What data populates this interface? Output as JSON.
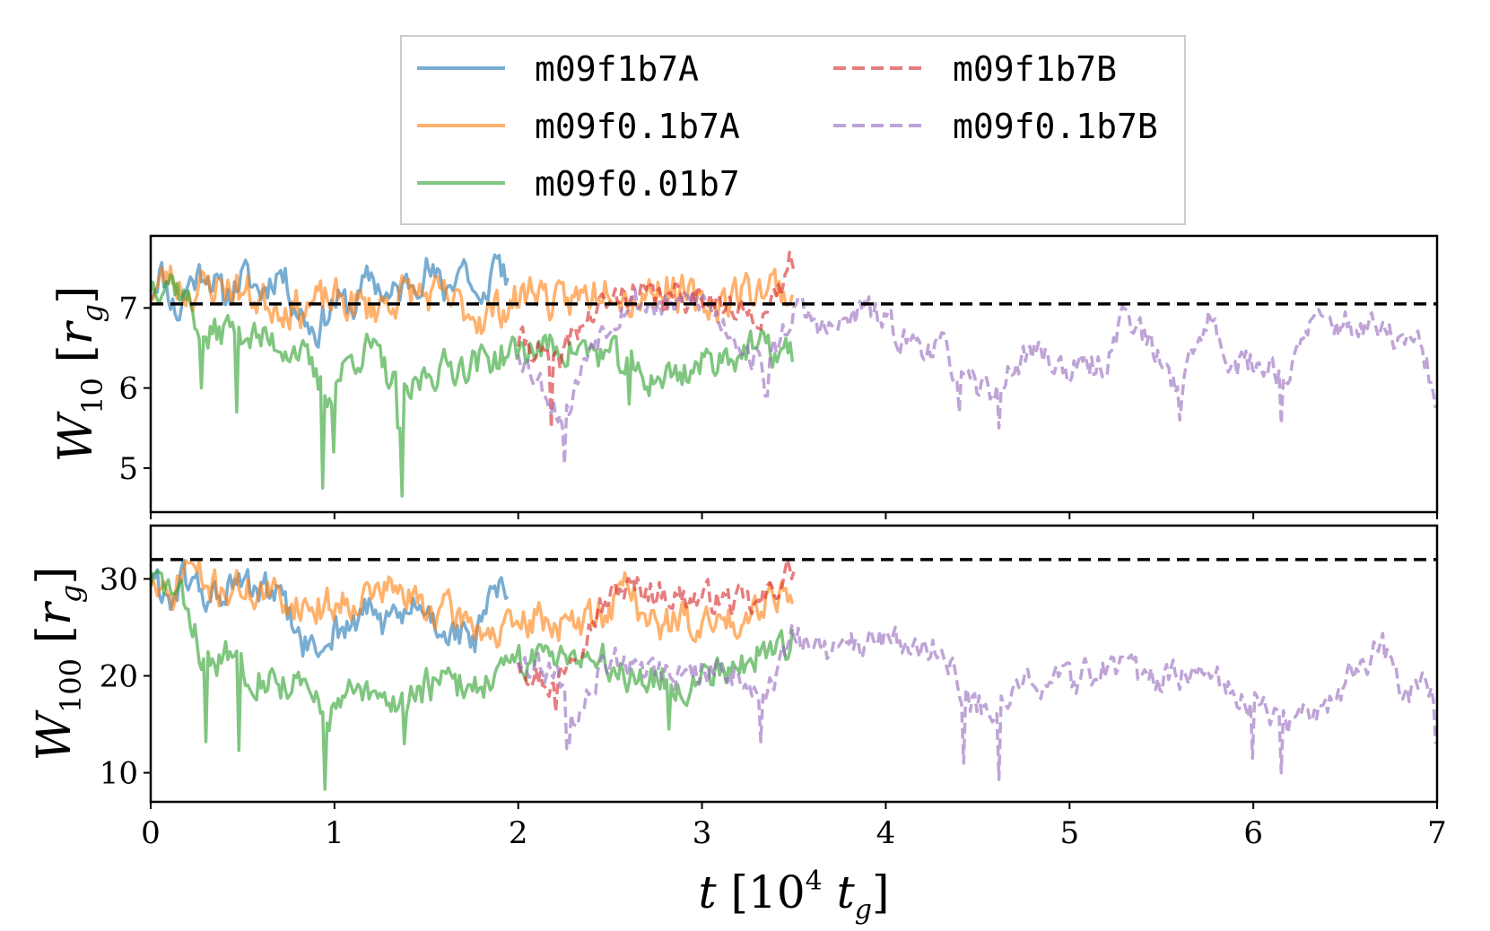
{
  "chart_data": [
    {
      "type": "line",
      "ylabel": {
        "symbol": "W",
        "sub": "10",
        "unit": "r",
        "unit_sub": "g"
      },
      "xlim": [
        0,
        7
      ],
      "ylim": [
        4.45,
        7.9
      ],
      "yticks": [
        5,
        6,
        7
      ],
      "reference_line": 7.05,
      "series": [
        {
          "name": "m09f1b7A",
          "color": "#1f77b4",
          "dash": false,
          "alpha": 0.6,
          "t_start": 0.0,
          "t_end": 1.95,
          "anchors": [
            [
              0,
              7.2
            ],
            [
              0.05,
              7.5
            ],
            [
              0.1,
              7.2
            ],
            [
              0.15,
              6.9
            ],
            [
              0.2,
              7.3
            ],
            [
              0.3,
              7.5
            ],
            [
              0.4,
              7.1
            ],
            [
              0.5,
              7.4
            ],
            [
              0.6,
              7.2
            ],
            [
              0.7,
              7.5
            ],
            [
              0.8,
              7.0
            ],
            [
              0.9,
              6.7
            ],
            [
              1.0,
              7.1
            ],
            [
              1.1,
              7.0
            ],
            [
              1.2,
              7.4
            ],
            [
              1.3,
              7.1
            ],
            [
              1.4,
              7.3
            ],
            [
              1.5,
              7.5
            ],
            [
              1.6,
              7.2
            ],
            [
              1.7,
              7.6
            ],
            [
              1.8,
              6.9
            ],
            [
              1.88,
              7.7
            ],
            [
              1.95,
              7.3
            ]
          ],
          "noise": 0.35,
          "seed": 11
        },
        {
          "name": "m09f0.1b7A",
          "color": "#ff7f0e",
          "dash": false,
          "alpha": 0.6,
          "t_start": 0.0,
          "t_end": 3.5,
          "anchors": [
            [
              0,
              7.2
            ],
            [
              0.1,
              7.4
            ],
            [
              0.2,
              7.2
            ],
            [
              0.4,
              7.3
            ],
            [
              0.6,
              7.1
            ],
            [
              0.8,
              7.0
            ],
            [
              1.0,
              7.1
            ],
            [
              1.2,
              7.0
            ],
            [
              1.4,
              7.2
            ],
            [
              1.6,
              7.1
            ],
            [
              1.8,
              6.9
            ],
            [
              2.0,
              7.1
            ],
            [
              2.1,
              7.3
            ],
            [
              2.2,
              7.0
            ],
            [
              2.4,
              7.2
            ],
            [
              2.5,
              7.4
            ],
            [
              2.6,
              7.1
            ],
            [
              2.8,
              7.3
            ],
            [
              3.0,
              7.0
            ],
            [
              3.2,
              7.2
            ],
            [
              3.4,
              7.3
            ],
            [
              3.5,
              7.1
            ]
          ],
          "noise": 0.4,
          "seed": 23
        },
        {
          "name": "m09f0.01b7",
          "color": "#2ca02c",
          "dash": false,
          "alpha": 0.6,
          "t_start": 0.0,
          "t_end": 3.5,
          "anchors": [
            [
              0,
              7.3
            ],
            [
              0.1,
              7.4
            ],
            [
              0.2,
              7.1
            ],
            [
              0.3,
              6.6
            ],
            [
              0.45,
              6.8
            ],
            [
              0.6,
              6.6
            ],
            [
              0.8,
              6.5
            ],
            [
              0.95,
              5.9
            ],
            [
              1.1,
              6.4
            ],
            [
              1.2,
              6.5
            ],
            [
              1.38,
              5.8
            ],
            [
              1.5,
              6.2
            ],
            [
              1.7,
              6.3
            ],
            [
              1.9,
              6.4
            ],
            [
              2.1,
              6.5
            ],
            [
              2.3,
              6.5
            ],
            [
              2.5,
              6.4
            ],
            [
              2.7,
              6.1
            ],
            [
              2.9,
              6.2
            ],
            [
              3.1,
              6.4
            ],
            [
              3.3,
              6.5
            ],
            [
              3.5,
              6.4
            ]
          ],
          "noise": 0.35,
          "seed": 37,
          "dips": [
            [
              0.28,
              6.0
            ],
            [
              0.47,
              5.7
            ],
            [
              0.94,
              4.75
            ],
            [
              1.0,
              5.2
            ],
            [
              1.37,
              4.65
            ],
            [
              1.35,
              5.5
            ],
            [
              2.6,
              5.8
            ]
          ]
        },
        {
          "name": "m09f1b7B",
          "color": "#d62728",
          "dash": true,
          "alpha": 0.6,
          "t_start": 2.0,
          "t_end": 3.5,
          "anchors": [
            [
              2.0,
              6.6
            ],
            [
              2.1,
              6.5
            ],
            [
              2.2,
              6.2
            ],
            [
              2.3,
              6.7
            ],
            [
              2.45,
              7.0
            ],
            [
              2.6,
              7.2
            ],
            [
              2.8,
              7.1
            ],
            [
              3.0,
              7.2
            ],
            [
              3.2,
              6.9
            ],
            [
              3.4,
              7.0
            ],
            [
              3.48,
              7.6
            ]
          ],
          "noise": 0.3,
          "seed": 41,
          "dips": [
            [
              2.18,
              5.5
            ]
          ]
        },
        {
          "name": "m09f0.1b7B",
          "color": "#9467bd",
          "dash": true,
          "alpha": 0.6,
          "t_start": 2.0,
          "t_end": 7.0,
          "anchors": [
            [
              2.0,
              6.5
            ],
            [
              2.25,
              5.6
            ],
            [
              2.4,
              6.6
            ],
            [
              2.6,
              7.1
            ],
            [
              2.8,
              7.0
            ],
            [
              3.0,
              7.1
            ],
            [
              3.2,
              6.6
            ],
            [
              3.35,
              6.2
            ],
            [
              3.5,
              7.0
            ],
            [
              3.7,
              6.7
            ],
            [
              3.9,
              7.0
            ],
            [
              4.1,
              6.6
            ],
            [
              4.3,
              6.5
            ],
            [
              4.45,
              6.0
            ],
            [
              4.6,
              6.0
            ],
            [
              4.8,
              6.5
            ],
            [
              5.0,
              6.2
            ],
            [
              5.2,
              6.3
            ],
            [
              5.3,
              7.0
            ],
            [
              5.5,
              6.3
            ],
            [
              5.6,
              6.0
            ],
            [
              5.75,
              6.9
            ],
            [
              5.9,
              6.3
            ],
            [
              6.1,
              6.3
            ],
            [
              6.2,
              6.1
            ],
            [
              6.3,
              6.8
            ],
            [
              6.5,
              6.8
            ],
            [
              6.7,
              6.7
            ],
            [
              6.9,
              6.5
            ],
            [
              7.0,
              5.9
            ]
          ],
          "noise": 0.3,
          "seed": 53,
          "dips": [
            [
              2.25,
              5.05
            ],
            [
              3.35,
              5.9
            ],
            [
              4.4,
              5.7
            ],
            [
              4.62,
              5.5
            ],
            [
              5.6,
              5.6
            ],
            [
              6.15,
              5.55
            ],
            [
              6.99,
              5.75
            ]
          ]
        }
      ]
    },
    {
      "type": "line",
      "ylabel": {
        "symbol": "W",
        "sub": "100",
        "unit": "r",
        "unit_sub": "g"
      },
      "xlabel": {
        "symbol": "t",
        "unit": "10",
        "unit_sup": "4",
        "unit_t": "t",
        "unit_sub": "g"
      },
      "xlim": [
        0,
        7
      ],
      "ylim": [
        7,
        35.5
      ],
      "xticks": [
        0,
        1,
        2,
        3,
        4,
        5,
        6,
        7
      ],
      "yticks": [
        10,
        20,
        30
      ],
      "reference_line": 32,
      "series": [
        {
          "name": "m09f1b7A",
          "color": "#1f77b4",
          "dash": false,
          "alpha": 0.6,
          "t_start": 0.0,
          "t_end": 1.95,
          "anchors": [
            [
              0,
              30
            ],
            [
              0.1,
              28
            ],
            [
              0.2,
              30
            ],
            [
              0.3,
              28
            ],
            [
              0.45,
              29
            ],
            [
              0.6,
              29
            ],
            [
              0.7,
              28
            ],
            [
              0.8,
              24
            ],
            [
              0.9,
              22
            ],
            [
              1.0,
              25
            ],
            [
              1.1,
              25
            ],
            [
              1.2,
              27
            ],
            [
              1.3,
              25
            ],
            [
              1.45,
              27
            ],
            [
              1.6,
              25
            ],
            [
              1.75,
              23
            ],
            [
              1.88,
              29
            ],
            [
              1.95,
              27
            ]
          ],
          "noise": 3.0,
          "seed": 61
        },
        {
          "name": "m09f0.1b7A",
          "color": "#ff7f0e",
          "dash": false,
          "alpha": 0.6,
          "t_start": 0.0,
          "t_end": 3.5,
          "anchors": [
            [
              0,
              30
            ],
            [
              0.1,
              27
            ],
            [
              0.2,
              32
            ],
            [
              0.3,
              29
            ],
            [
              0.5,
              29
            ],
            [
              0.7,
              28
            ],
            [
              0.9,
              27
            ],
            [
              1.1,
              28
            ],
            [
              1.3,
              29
            ],
            [
              1.5,
              27
            ],
            [
              1.7,
              26
            ],
            [
              1.9,
              24
            ],
            [
              2.1,
              26
            ],
            [
              2.3,
              25
            ],
            [
              2.5,
              27
            ],
            [
              2.6,
              30
            ],
            [
              2.7,
              25
            ],
            [
              2.9,
              26
            ],
            [
              3.0,
              25
            ],
            [
              3.2,
              26
            ],
            [
              3.4,
              29
            ],
            [
              3.5,
              28
            ]
          ],
          "noise": 3.0,
          "seed": 71
        },
        {
          "name": "m09f0.01b7",
          "color": "#2ca02c",
          "dash": false,
          "alpha": 0.6,
          "t_start": 0.0,
          "t_end": 3.5,
          "anchors": [
            [
              0,
              30
            ],
            [
              0.1,
              29
            ],
            [
              0.2,
              27
            ],
            [
              0.3,
              21
            ],
            [
              0.45,
              22
            ],
            [
              0.6,
              20
            ],
            [
              0.8,
              19
            ],
            [
              0.95,
              16
            ],
            [
              1.1,
              18
            ],
            [
              1.3,
              17
            ],
            [
              1.5,
              19
            ],
            [
              1.7,
              19
            ],
            [
              1.9,
              20
            ],
            [
              2.1,
              22
            ],
            [
              2.3,
              23
            ],
            [
              2.5,
              21
            ],
            [
              2.7,
              20
            ],
            [
              2.9,
              19
            ],
            [
              3.1,
              21
            ],
            [
              3.3,
              22
            ],
            [
              3.5,
              24
            ]
          ],
          "noise": 3.0,
          "seed": 83,
          "dips": [
            [
              0.3,
              13.2
            ],
            [
              0.48,
              12.3
            ],
            [
              0.95,
              8.3
            ],
            [
              1.38,
              13.0
            ],
            [
              2.82,
              14.5
            ]
          ]
        },
        {
          "name": "m09f1b7B",
          "color": "#d62728",
          "dash": true,
          "alpha": 0.6,
          "t_start": 2.0,
          "t_end": 3.5,
          "anchors": [
            [
              2.0,
              22
            ],
            [
              2.1,
              20
            ],
            [
              2.2,
              19
            ],
            [
              2.3,
              23
            ],
            [
              2.45,
              27
            ],
            [
              2.55,
              29
            ],
            [
              2.7,
              29
            ],
            [
              2.9,
              28
            ],
            [
              3.1,
              28
            ],
            [
              3.3,
              27
            ],
            [
              3.48,
              31
            ]
          ],
          "noise": 2.5,
          "seed": 97,
          "dips": [
            [
              2.2,
              16.3
            ]
          ]
        },
        {
          "name": "m09f0.1b7B",
          "color": "#9467bd",
          "dash": true,
          "alpha": 0.6,
          "t_start": 2.0,
          "t_end": 7.0,
          "anchors": [
            [
              2.0,
              22
            ],
            [
              2.2,
              20
            ],
            [
              2.3,
              15
            ],
            [
              2.5,
              22
            ],
            [
              2.7,
              21
            ],
            [
              2.9,
              20
            ],
            [
              3.1,
              21
            ],
            [
              3.35,
              18
            ],
            [
              3.5,
              24
            ],
            [
              3.7,
              22
            ],
            [
              3.9,
              24
            ],
            [
              4.1,
              23
            ],
            [
              4.3,
              23
            ],
            [
              4.45,
              17
            ],
            [
              4.6,
              17
            ],
            [
              4.8,
              20
            ],
            [
              5.0,
              19
            ],
            [
              5.2,
              21
            ],
            [
              5.4,
              20
            ],
            [
              5.6,
              20
            ],
            [
              5.75,
              22
            ],
            [
              5.9,
              18
            ],
            [
              6.0,
              17
            ],
            [
              6.15,
              15
            ],
            [
              6.3,
              16
            ],
            [
              6.5,
              19
            ],
            [
              6.7,
              23
            ],
            [
              6.8,
              18
            ],
            [
              7.0,
              19
            ]
          ],
          "noise": 2.5,
          "seed": 109,
          "dips": [
            [
              2.27,
              12.5
            ],
            [
              3.32,
              13.2
            ],
            [
              4.42,
              11.0
            ],
            [
              4.62,
              9.3
            ],
            [
              6.0,
              11.5
            ],
            [
              6.15,
              10.0
            ],
            [
              6.99,
              13.0
            ]
          ]
        }
      ]
    }
  ],
  "legend": {
    "placement": "top-center",
    "entries": [
      {
        "label": "m09f1b7A",
        "color": "#1f77b4",
        "dash": false
      },
      {
        "label": "m09f1b7B",
        "color": "#d62728",
        "dash": true
      },
      {
        "label": "m09f0.1b7A",
        "color": "#ff7f0e",
        "dash": false
      },
      {
        "label": "m09f0.1b7B",
        "color": "#9467bd",
        "dash": true
      },
      {
        "label": "m09f0.01b7",
        "color": "#2ca02c",
        "dash": false
      }
    ]
  }
}
